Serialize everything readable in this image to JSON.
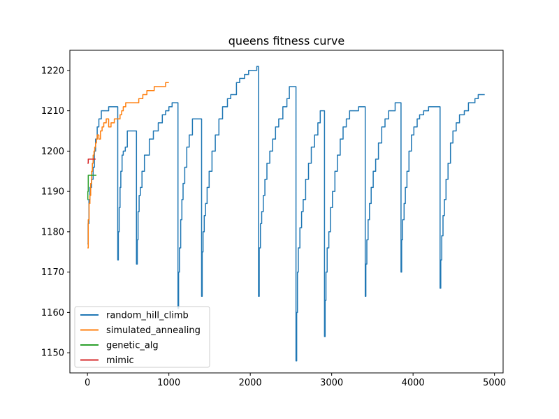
{
  "chart_data": {
    "type": "line",
    "title": "queens fitness curve",
    "xlabel": "",
    "ylabel": "",
    "xlim": [
      -216,
      5106
    ],
    "ylim": [
      1145,
      1225
    ],
    "xticks": [
      0,
      1000,
      2000,
      3000,
      4000,
      5000
    ],
    "yticks": [
      1150,
      1160,
      1170,
      1180,
      1190,
      1200,
      1210,
      1220
    ],
    "grid": false,
    "legend_position": "lower-left",
    "series": [
      {
        "name": "random_hill_climb",
        "color": "#1f77b4",
        "points": [
          [
            0,
            1177
          ],
          [
            8,
            1182
          ],
          [
            18,
            1188
          ],
          [
            30,
            1191
          ],
          [
            50,
            1193
          ],
          [
            70,
            1196
          ],
          [
            85,
            1200
          ],
          [
            100,
            1203
          ],
          [
            120,
            1206
          ],
          [
            140,
            1208
          ],
          [
            170,
            1210
          ],
          [
            240,
            1210
          ],
          [
            260,
            1211
          ],
          [
            370,
            1211
          ],
          [
            372,
            1173
          ],
          [
            380,
            1180
          ],
          [
            390,
            1186
          ],
          [
            400,
            1191
          ],
          [
            410,
            1195
          ],
          [
            425,
            1199
          ],
          [
            440,
            1200
          ],
          [
            465,
            1201
          ],
          [
            490,
            1205
          ],
          [
            600,
            1205
          ],
          [
            602,
            1172
          ],
          [
            612,
            1178
          ],
          [
            622,
            1185
          ],
          [
            635,
            1189
          ],
          [
            650,
            1191
          ],
          [
            670,
            1195
          ],
          [
            700,
            1199
          ],
          [
            760,
            1203
          ],
          [
            810,
            1205
          ],
          [
            870,
            1207
          ],
          [
            920,
            1209
          ],
          [
            960,
            1210
          ],
          [
            1000,
            1211
          ],
          [
            1040,
            1212
          ],
          [
            1110,
            1212
          ],
          [
            1112,
            1161
          ],
          [
            1120,
            1170
          ],
          [
            1130,
            1176
          ],
          [
            1145,
            1183
          ],
          [
            1160,
            1188
          ],
          [
            1175,
            1192
          ],
          [
            1195,
            1196
          ],
          [
            1220,
            1201
          ],
          [
            1250,
            1204
          ],
          [
            1290,
            1208
          ],
          [
            1400,
            1208
          ],
          [
            1402,
            1164
          ],
          [
            1410,
            1175
          ],
          [
            1420,
            1180
          ],
          [
            1435,
            1184
          ],
          [
            1450,
            1187
          ],
          [
            1470,
            1191
          ],
          [
            1495,
            1195
          ],
          [
            1530,
            1200
          ],
          [
            1570,
            1204
          ],
          [
            1615,
            1208
          ],
          [
            1660,
            1211
          ],
          [
            1720,
            1213
          ],
          [
            1760,
            1214
          ],
          [
            1830,
            1217
          ],
          [
            1870,
            1218
          ],
          [
            1930,
            1219
          ],
          [
            1980,
            1220
          ],
          [
            2080,
            1221
          ],
          [
            2100,
            1221
          ],
          [
            2102,
            1164
          ],
          [
            2110,
            1176
          ],
          [
            2125,
            1182
          ],
          [
            2140,
            1185
          ],
          [
            2160,
            1189
          ],
          [
            2180,
            1193
          ],
          [
            2205,
            1197
          ],
          [
            2240,
            1200
          ],
          [
            2275,
            1203
          ],
          [
            2310,
            1206
          ],
          [
            2350,
            1208
          ],
          [
            2400,
            1211
          ],
          [
            2450,
            1213
          ],
          [
            2480,
            1216
          ],
          [
            2560,
            1216
          ],
          [
            2562,
            1148
          ],
          [
            2570,
            1160
          ],
          [
            2580,
            1170
          ],
          [
            2590,
            1176
          ],
          [
            2610,
            1181
          ],
          [
            2630,
            1185
          ],
          [
            2650,
            1188
          ],
          [
            2680,
            1193
          ],
          [
            2715,
            1197
          ],
          [
            2750,
            1201
          ],
          [
            2790,
            1204
          ],
          [
            2830,
            1207
          ],
          [
            2860,
            1210
          ],
          [
            2910,
            1210
          ],
          [
            2912,
            1154
          ],
          [
            2920,
            1163
          ],
          [
            2930,
            1170
          ],
          [
            2945,
            1176
          ],
          [
            2965,
            1180
          ],
          [
            2985,
            1186
          ],
          [
            3010,
            1190
          ],
          [
            3040,
            1195
          ],
          [
            3070,
            1199
          ],
          [
            3105,
            1203
          ],
          [
            3140,
            1206
          ],
          [
            3180,
            1208
          ],
          [
            3220,
            1210
          ],
          [
            3300,
            1210
          ],
          [
            3330,
            1211
          ],
          [
            3410,
            1211
          ],
          [
            3412,
            1164
          ],
          [
            3420,
            1172
          ],
          [
            3432,
            1178
          ],
          [
            3448,
            1183
          ],
          [
            3465,
            1187
          ],
          [
            3485,
            1191
          ],
          [
            3510,
            1195
          ],
          [
            3540,
            1198
          ],
          [
            3575,
            1202
          ],
          [
            3615,
            1206
          ],
          [
            3655,
            1208
          ],
          [
            3700,
            1210
          ],
          [
            3780,
            1212
          ],
          [
            3850,
            1212
          ],
          [
            3852,
            1170
          ],
          [
            3860,
            1178
          ],
          [
            3872,
            1183
          ],
          [
            3890,
            1187
          ],
          [
            3905,
            1191
          ],
          [
            3925,
            1195
          ],
          [
            3950,
            1200
          ],
          [
            3980,
            1204
          ],
          [
            4010,
            1206
          ],
          [
            4050,
            1208
          ],
          [
            4080,
            1209
          ],
          [
            4130,
            1210
          ],
          [
            4190,
            1211
          ],
          [
            4330,
            1211
          ],
          [
            4332,
            1166
          ],
          [
            4340,
            1173
          ],
          [
            4352,
            1179
          ],
          [
            4368,
            1184
          ],
          [
            4385,
            1188
          ],
          [
            4405,
            1193
          ],
          [
            4430,
            1197
          ],
          [
            4460,
            1202
          ],
          [
            4490,
            1205
          ],
          [
            4530,
            1207
          ],
          [
            4570,
            1209
          ],
          [
            4630,
            1210
          ],
          [
            4680,
            1212
          ],
          [
            4760,
            1213
          ],
          [
            4800,
            1214
          ],
          [
            4880,
            1214
          ]
        ]
      },
      {
        "name": "simulated_annealing",
        "color": "#ff7f0e",
        "points": [
          [
            0,
            1176
          ],
          [
            10,
            1183
          ],
          [
            20,
            1187
          ],
          [
            30,
            1189
          ],
          [
            40,
            1192
          ],
          [
            50,
            1195
          ],
          [
            60,
            1197
          ],
          [
            70,
            1199
          ],
          [
            80,
            1200
          ],
          [
            90,
            1201
          ],
          [
            100,
            1202
          ],
          [
            110,
            1203
          ],
          [
            120,
            1204
          ],
          [
            140,
            1203
          ],
          [
            160,
            1205
          ],
          [
            180,
            1206
          ],
          [
            200,
            1207
          ],
          [
            230,
            1208
          ],
          [
            260,
            1206
          ],
          [
            290,
            1207
          ],
          [
            330,
            1208
          ],
          [
            380,
            1208
          ],
          [
            400,
            1209
          ],
          [
            420,
            1210
          ],
          [
            440,
            1211
          ],
          [
            470,
            1212
          ],
          [
            540,
            1212
          ],
          [
            580,
            1212
          ],
          [
            630,
            1213
          ],
          [
            680,
            1214
          ],
          [
            730,
            1215
          ],
          [
            820,
            1216
          ],
          [
            880,
            1216
          ],
          [
            920,
            1216
          ],
          [
            960,
            1217
          ],
          [
            1000,
            1217
          ]
        ]
      },
      {
        "name": "genetic_alg",
        "color": "#2ca02c",
        "points": [
          [
            0,
            1188
          ],
          [
            5,
            1190
          ],
          [
            10,
            1194
          ],
          [
            40,
            1194
          ],
          [
            60,
            1194
          ],
          [
            80,
            1194
          ],
          [
            100,
            1194
          ],
          [
            110,
            1194
          ]
        ]
      },
      {
        "name": "mimic",
        "color": "#d62728",
        "points": [
          [
            0,
            1197
          ],
          [
            10,
            1198
          ],
          [
            20,
            1198
          ],
          [
            40,
            1198
          ],
          [
            60,
            1198
          ],
          [
            80,
            1198
          ],
          [
            100,
            1198
          ]
        ]
      }
    ]
  }
}
